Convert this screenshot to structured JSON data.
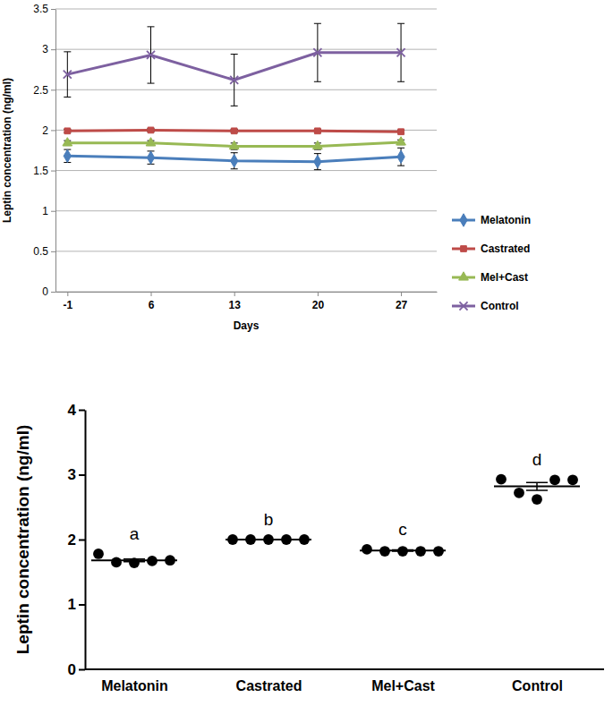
{
  "chart_data": [
    {
      "type": "line",
      "x": [
        -1,
        6,
        13,
        20,
        27
      ],
      "xlim": [
        -2,
        30
      ],
      "xticks": [
        -1,
        6,
        13,
        20,
        27
      ],
      "ylim": [
        0,
        3.5
      ],
      "yticks": [
        0,
        0.5,
        1,
        1.5,
        2,
        2.5,
        3,
        3.5
      ],
      "x_label": "Days",
      "y_label": "Leptin concentration (ng/ml)",
      "grid": true,
      "legend": "right",
      "series": [
        {
          "name": "Melatonin",
          "color": "#4a7ebb",
          "marker": "diamond",
          "values": [
            1.68,
            1.66,
            1.62,
            1.61,
            1.67
          ],
          "errors": [
            0.08,
            0.08,
            0.1,
            0.1,
            0.11
          ]
        },
        {
          "name": "Castrated",
          "color": "#be4b48",
          "marker": "square",
          "values": [
            1.99,
            2.0,
            1.99,
            1.99,
            1.98
          ],
          "errors": [
            0.02,
            0.02,
            0.02,
            0.02,
            0.02
          ]
        },
        {
          "name": "Mel+Cast",
          "color": "#98b954",
          "marker": "triangle",
          "values": [
            1.84,
            1.84,
            1.8,
            1.8,
            1.85
          ],
          "errors": [
            0.03,
            0.03,
            0.04,
            0.04,
            0.03
          ]
        },
        {
          "name": "Control",
          "color": "#7d60a0",
          "marker": "x",
          "values": [
            2.69,
            2.93,
            2.62,
            2.96,
            2.96
          ],
          "errors": [
            0.28,
            0.35,
            0.32,
            0.36,
            0.36
          ]
        }
      ]
    },
    {
      "type": "scatter",
      "categories": [
        "Melatonin",
        "Castrated",
        "Mel+Cast",
        "Control"
      ],
      "values": [
        [
          1.78,
          1.65,
          1.64,
          1.67,
          1.68
        ],
        [
          2.0,
          2.0,
          2.0,
          2.0,
          2.0
        ],
        [
          1.85,
          1.82,
          1.82,
          1.82,
          1.82
        ],
        [
          2.93,
          2.72,
          2.62,
          2.92,
          2.92
        ]
      ],
      "means": [
        1.68,
        2.0,
        1.83,
        2.82
      ],
      "errors": [
        0.02,
        0.0,
        0.01,
        0.06
      ],
      "annotations": [
        "a",
        "b",
        "c",
        "d"
      ],
      "color": "#000000",
      "marker": "circle",
      "ylim": [
        0,
        4
      ],
      "yticks": [
        0,
        1,
        2,
        3,
        4
      ],
      "y_label": "Leptin concentration (ng/ml)"
    }
  ]
}
